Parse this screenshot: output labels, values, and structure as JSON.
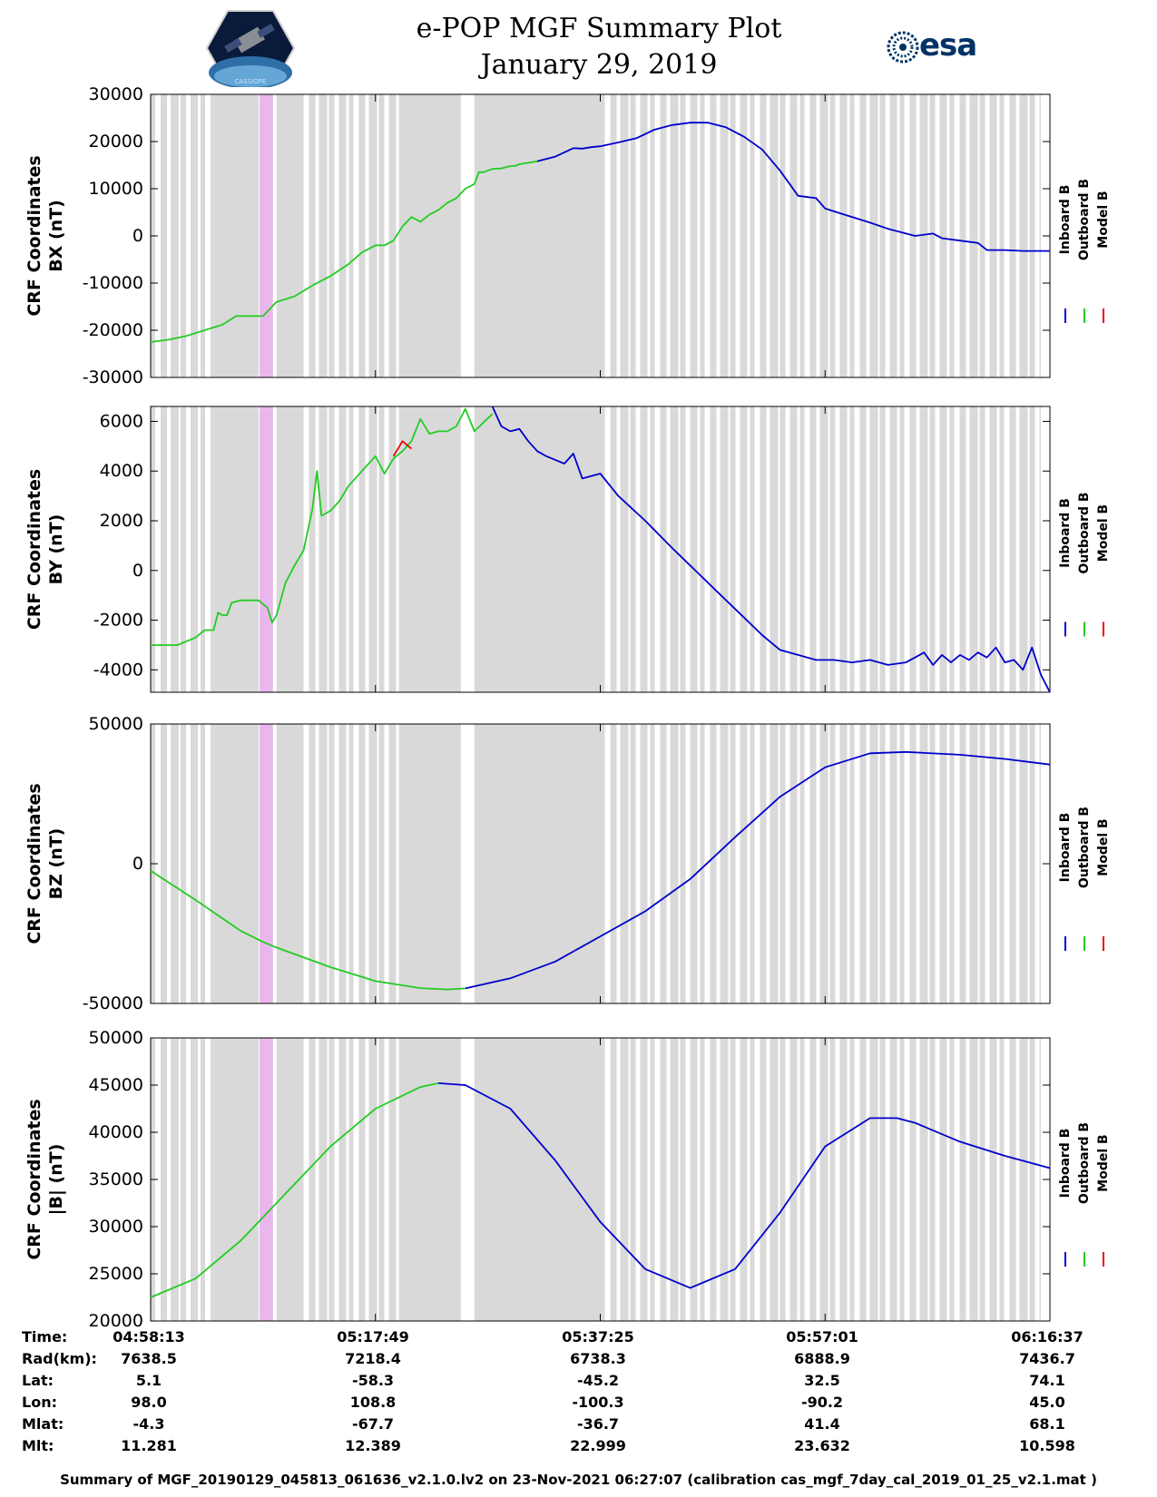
{
  "header": {
    "title_line1": "e-POP MGF Summary Plot",
    "title_line2": "January 29, 2019",
    "logo_left_text": "CASSIOPE",
    "logo_right_text": "esa"
  },
  "legend": {
    "entries": [
      {
        "name": "Inboard B",
        "color": "#0000cc"
      },
      {
        "name": "Outboard B",
        "color": "#22cc22"
      },
      {
        "name": "Model B",
        "color": "#ee0000"
      }
    ]
  },
  "chart_data": [
    {
      "type": "line",
      "id": "bx",
      "ylabel_line1": "CRF Coordinates",
      "ylabel_line2": "BX (nT)",
      "ylim": [
        -30000,
        30000
      ],
      "yticks": [
        -30000,
        -20000,
        -10000,
        0,
        10000,
        20000,
        30000
      ],
      "ytick_labels": [
        "-30000",
        "-20000",
        "-10000",
        "0",
        "10000",
        "20000",
        "30000"
      ],
      "series": [
        {
          "name": "Outboard B",
          "x": [
            0,
            0.02,
            0.04,
            0.06,
            0.08,
            0.095,
            0.11,
            0.125,
            0.14,
            0.16,
            0.18,
            0.2,
            0.22,
            0.235,
            0.25,
            0.26,
            0.27,
            0.28,
            0.29,
            0.3,
            0.31,
            0.32,
            0.33,
            0.34,
            0.35,
            0.36,
            0.365,
            0.37,
            0.38,
            0.39,
            0.4,
            0.405,
            0.41,
            0.42,
            0.43
          ],
          "y": [
            -22500,
            -22000,
            -21200,
            -20000,
            -18800,
            -17000,
            -17000,
            -17000,
            -14000,
            -12800,
            -10500,
            -8500,
            -6000,
            -3500,
            -2000,
            -2000,
            -1000,
            2000,
            4000,
            3000,
            4500,
            5500,
            7000,
            8000,
            10000,
            11000,
            13500,
            13500,
            14200,
            14300,
            14800,
            14800,
            15200,
            15500,
            15800
          ]
        },
        {
          "name": "Inboard B",
          "x": [
            0.43,
            0.45,
            0.47,
            0.48,
            0.49,
            0.5,
            0.52,
            0.54,
            0.56,
            0.58,
            0.6,
            0.62,
            0.64,
            0.66,
            0.68,
            0.7,
            0.72,
            0.74,
            0.75,
            0.76,
            0.8,
            0.82,
            0.85,
            0.87,
            0.88,
            0.9,
            0.92,
            0.93,
            0.95,
            0.97,
            0.98,
            1.0
          ],
          "y": [
            15800,
            16800,
            18600,
            18500,
            18800,
            19000,
            19800,
            20700,
            22500,
            23500,
            24000,
            24000,
            23000,
            21000,
            18300,
            13800,
            8500,
            8000,
            5800,
            5200,
            2800,
            1500,
            0,
            500,
            -500,
            -1000,
            -1500,
            -3000,
            -3000,
            -3200,
            -3200,
            -3200
          ]
        }
      ]
    },
    {
      "type": "line",
      "id": "by",
      "ylabel_line1": "CRF Coordinates",
      "ylabel_line2": "BY (nT)",
      "ylim": [
        -4900,
        6600
      ],
      "yticks": [
        -4000,
        -2000,
        0,
        2000,
        4000,
        6000
      ],
      "ytick_labels": [
        "-4000",
        "-2000",
        "0",
        "2000",
        "4000",
        "6000"
      ],
      "series": [
        {
          "name": "Outboard B",
          "x": [
            0,
            0.03,
            0.05,
            0.06,
            0.07,
            0.075,
            0.08,
            0.085,
            0.09,
            0.1,
            0.11,
            0.12,
            0.13,
            0.135,
            0.14,
            0.15,
            0.16,
            0.17,
            0.18,
            0.185,
            0.19,
            0.2,
            0.21,
            0.22,
            0.23,
            0.24,
            0.25,
            0.26,
            0.27,
            0.28,
            0.29,
            0.3,
            0.31,
            0.32,
            0.33,
            0.34,
            0.35,
            0.36,
            0.38
          ],
          "y": [
            -3000,
            -3000,
            -2700,
            -2400,
            -2400,
            -1700,
            -1800,
            -1800,
            -1300,
            -1200,
            -1200,
            -1200,
            -1500,
            -2100,
            -1800,
            -500,
            200,
            800,
            2500,
            4000,
            2200,
            2400,
            2800,
            3400,
            3800,
            4200,
            4600,
            3900,
            4500,
            4800,
            5200,
            6100,
            5500,
            5600,
            5600,
            5800,
            6500,
            5600,
            6300
          ]
        },
        {
          "name": "Model B",
          "x": [
            0.27,
            0.28,
            0.29
          ],
          "y": [
            4600,
            5200,
            4900
          ]
        },
        {
          "name": "Inboard B",
          "x": [
            0.38,
            0.39,
            0.4,
            0.41,
            0.42,
            0.43,
            0.44,
            0.46,
            0.47,
            0.48,
            0.5,
            0.52,
            0.55,
            0.58,
            0.6,
            0.62,
            0.64,
            0.66,
            0.68,
            0.7,
            0.72,
            0.74,
            0.76,
            0.78,
            0.8,
            0.82,
            0.84,
            0.86,
            0.87,
            0.88,
            0.89,
            0.9,
            0.91,
            0.92,
            0.93,
            0.94,
            0.95,
            0.96,
            0.97,
            0.98,
            0.99,
            1.0
          ],
          "y": [
            6600,
            5800,
            5600,
            5700,
            5200,
            4800,
            4600,
            4300,
            4700,
            3700,
            3900,
            3000,
            2000,
            900,
            200,
            -500,
            -1200,
            -1900,
            -2600,
            -3200,
            -3400,
            -3600,
            -3600,
            -3700,
            -3600,
            -3800,
            -3700,
            -3300,
            -3800,
            -3400,
            -3700,
            -3400,
            -3600,
            -3300,
            -3500,
            -3100,
            -3700,
            -3600,
            -4000,
            -3100,
            -4200,
            -4900
          ]
        }
      ]
    },
    {
      "type": "line",
      "id": "bz",
      "ylabel_line1": "CRF Coordinates",
      "ylabel_line2": "BZ (nT)",
      "ylim": [
        -50000,
        50000
      ],
      "yticks": [
        -50000,
        0,
        50000
      ],
      "ytick_labels": [
        "-50000",
        "0",
        "50000"
      ],
      "series": [
        {
          "name": "Outboard B",
          "x": [
            0,
            0.05,
            0.1,
            0.125,
            0.14,
            0.2,
            0.25,
            0.3,
            0.33,
            0.35
          ],
          "y": [
            -2500,
            -13000,
            -24000,
            -28000,
            -30000,
            -37000,
            -42000,
            -44500,
            -45000,
            -44600
          ]
        },
        {
          "name": "Inboard B",
          "x": [
            0.35,
            0.4,
            0.45,
            0.5,
            0.55,
            0.6,
            0.65,
            0.7,
            0.75,
            0.8,
            0.84,
            0.9,
            0.95,
            1.0
          ],
          "y": [
            -44600,
            -41000,
            -35000,
            -26000,
            -17000,
            -5500,
            9500,
            24000,
            34500,
            39500,
            40000,
            39000,
            37500,
            35500
          ]
        }
      ]
    },
    {
      "type": "line",
      "id": "bmag",
      "ylabel_line1": "CRF Coordinates",
      "ylabel_line2": "|B| (nT)",
      "ylim": [
        20000,
        50000
      ],
      "yticks": [
        20000,
        25000,
        30000,
        35000,
        40000,
        45000,
        50000
      ],
      "ytick_labels": [
        "20000",
        "25000",
        "30000",
        "35000",
        "40000",
        "45000",
        "50000"
      ],
      "series": [
        {
          "name": "Outboard B",
          "x": [
            0,
            0.05,
            0.1,
            0.15,
            0.2,
            0.25,
            0.3,
            0.32
          ],
          "y": [
            22500,
            24500,
            28500,
            33500,
            38500,
            42500,
            44800,
            45200
          ]
        },
        {
          "name": "Inboard B",
          "x": [
            0.32,
            0.35,
            0.4,
            0.45,
            0.5,
            0.55,
            0.6,
            0.65,
            0.7,
            0.75,
            0.8,
            0.83,
            0.85,
            0.9,
            0.95,
            1.0
          ],
          "y": [
            45200,
            45000,
            42500,
            37000,
            30500,
            25500,
            23500,
            25500,
            31500,
            38500,
            41500,
            41500,
            41000,
            39000,
            37500,
            36200
          ]
        }
      ]
    }
  ],
  "time_axis": {
    "label_rows": [
      {
        "label": "Time:",
        "values": [
          "04:58:13",
          "05:17:49",
          "05:37:25",
          "05:57:01",
          "06:16:37"
        ]
      },
      {
        "label": "Rad(km):",
        "values": [
          "7638.5",
          "7218.4",
          "6738.3",
          "6888.9",
          "7436.7"
        ]
      },
      {
        "label": "Lat:",
        "values": [
          "5.1",
          "-58.3",
          "-45.2",
          "32.5",
          "74.1"
        ]
      },
      {
        "label": "Lon:",
        "values": [
          "98.0",
          "108.8",
          "-100.3",
          "-90.2",
          "45.0"
        ]
      },
      {
        "label": "Mlat:",
        "values": [
          "-4.3",
          "-67.7",
          "-36.7",
          "41.4",
          "68.1"
        ]
      },
      {
        "label": "Mlt:",
        "values": [
          "11.281",
          "12.389",
          "22.999",
          "23.632",
          "10.598"
        ]
      }
    ],
    "major_tick_fractions": [
      0,
      0.25,
      0.5,
      0.75,
      1.0
    ],
    "pink_span": [
      0.121,
      0.136
    ],
    "solid_gray_spans": [
      [
        0.07,
        0.12
      ],
      [
        0.14,
        0.165
      ],
      [
        0.28,
        0.345
      ],
      [
        0.36,
        0.5
      ]
    ],
    "stripe_spans": [
      [
        0.0,
        0.07
      ],
      [
        0.165,
        0.28
      ],
      [
        0.5,
        0.99
      ]
    ]
  },
  "footer": {
    "text": "Summary of MGF_20190129_045813_061636_v2.1.0.lv2 on 23-Nov-2021 06:27:07 (calibration cas_mgf_7day_cal_2019_01_25_v2.1.mat )"
  }
}
